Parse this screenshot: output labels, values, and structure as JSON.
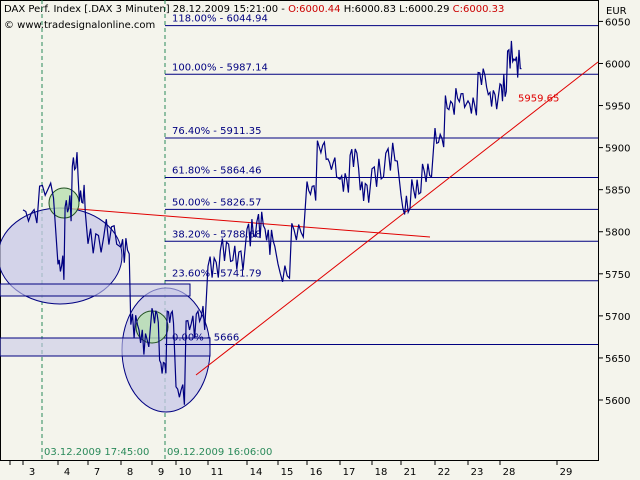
{
  "header": {
    "title": "DAX Perf. Index [.DAX  3 Minuten] 28.12.2009 15:21:00 - ",
    "open": "O:6000.44",
    "high": "H:6000.83",
    "low": "L:6000.29",
    "close": "C:6000.33",
    "site": "© www.tradesignalonline.com",
    "currency": "EUR"
  },
  "colors": {
    "background": "#f4f4ec",
    "price_line": "#000080",
    "fib_line": "#000080",
    "trend_line": "#e00000",
    "ellipse_fill": "#c8c8e8",
    "circle_fill": "#b8e0b0",
    "vline": "#2a8a5a"
  },
  "chart_data": {
    "type": "line",
    "ylim": [
      5580,
      6070
    ],
    "yticks": [
      5600,
      5650,
      5700,
      5750,
      5800,
      5850,
      5900,
      5950,
      6000,
      6050
    ],
    "xticks": [
      "3",
      "4",
      "7",
      "8",
      "9",
      "10",
      "11",
      "14",
      "15",
      "16",
      "17",
      "18",
      "21",
      "22",
      "23",
      "28",
      "29"
    ],
    "fib_levels": [
      {
        "label": "118.00% - 6044.94",
        "value": 6044.94
      },
      {
        "label": "100.00% - 5987.14",
        "value": 5987.14
      },
      {
        "label": "76.40% - 5911.35",
        "value": 5911.35
      },
      {
        "label": "61.80% - 5864.46",
        "value": 5864.46
      },
      {
        "label": "50.00% - 5826.57",
        "value": 5826.57
      },
      {
        "label": "38.20% - 5788.68",
        "value": 5788.68
      },
      {
        "label": "23.60% - 5741.79",
        "value": 5741.79
      },
      {
        "label": "0.00% - 5666",
        "value": 5666
      }
    ],
    "annotations": [
      {
        "label": "03.12.2009 17:45:00",
        "x": "4"
      },
      {
        "label": "09.12.2009 16:06:00",
        "x": "10"
      },
      {
        "label": "5959.65",
        "value": 5959.65
      }
    ],
    "series": [
      {
        "points": [
          [
            "3",
            5820
          ],
          [
            "3",
            5850
          ],
          [
            "4",
            5760
          ],
          [
            "4",
            5830
          ],
          [
            "4",
            5880
          ],
          [
            "4",
            5840
          ],
          [
            "7",
            5790
          ],
          [
            "7",
            5800
          ],
          [
            "8",
            5780
          ],
          [
            "8",
            5690
          ],
          [
            "8",
            5670
          ],
          [
            "9",
            5700
          ],
          [
            "9",
            5640
          ],
          [
            "9",
            5700
          ],
          [
            "10",
            5610
          ],
          [
            "10",
            5690
          ],
          [
            "10",
            5700
          ],
          [
            "11",
            5760
          ],
          [
            "11",
            5780
          ],
          [
            "11",
            5770
          ],
          [
            "14",
            5800
          ],
          [
            "14",
            5810
          ],
          [
            "14",
            5790
          ],
          [
            "15",
            5750
          ],
          [
            "15",
            5800
          ],
          [
            "16",
            5850
          ],
          [
            "16",
            5900
          ],
          [
            "16",
            5880
          ],
          [
            "17",
            5860
          ],
          [
            "17",
            5890
          ],
          [
            "17",
            5850
          ],
          [
            "18",
            5870
          ],
          [
            "18",
            5890
          ],
          [
            "21",
            5830
          ],
          [
            "21",
            5850
          ],
          [
            "21",
            5870
          ],
          [
            "22",
            5910
          ],
          [
            "22",
            5950
          ],
          [
            "22",
            5960
          ],
          [
            "23",
            5950
          ],
          [
            "23",
            5985
          ],
          [
            "23",
            5960
          ],
          [
            "28",
            5970
          ],
          [
            "28",
            6010
          ],
          [
            "28",
            6000
          ]
        ]
      }
    ]
  }
}
